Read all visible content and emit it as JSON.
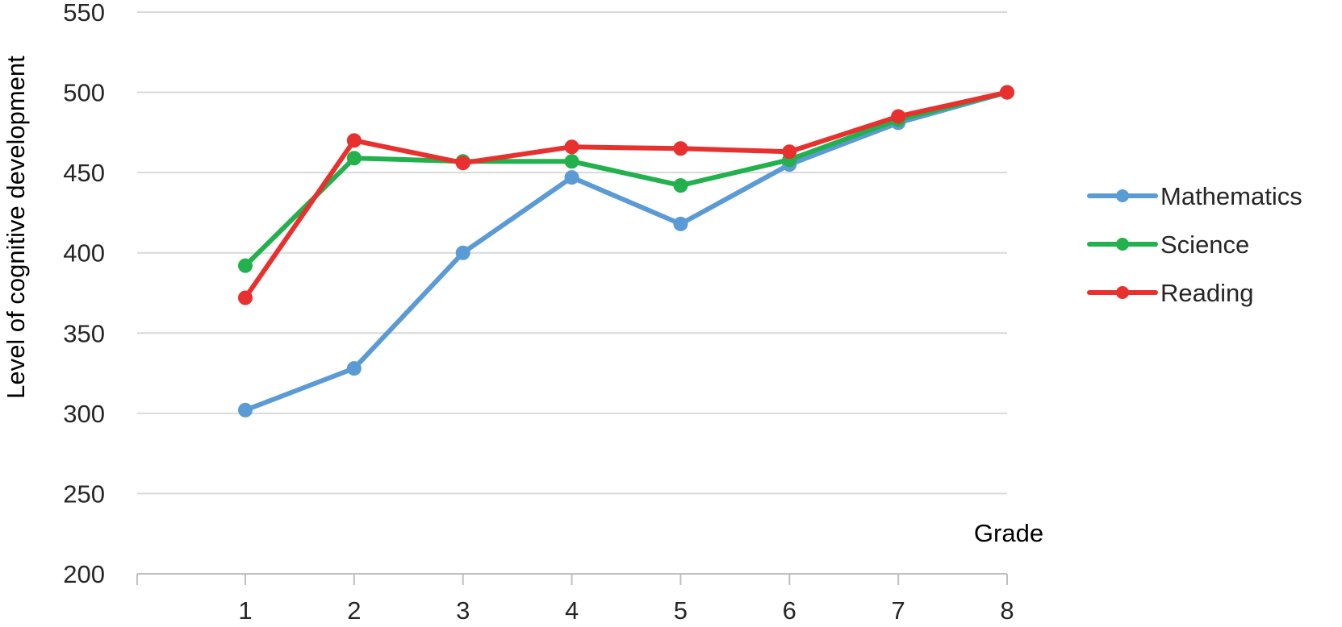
{
  "chart_data": {
    "type": "line",
    "xlabel": "Grade",
    "ylabel": "Level of cognitive development",
    "categories": [
      "1",
      "2",
      "3",
      "4",
      "5",
      "6",
      "7",
      "8"
    ],
    "ylim": [
      200,
      550
    ],
    "yticks": [
      "200",
      "250",
      "300",
      "350",
      "400",
      "450",
      "500",
      "550"
    ],
    "grid": true,
    "legend_position": "right",
    "series": [
      {
        "name": "Mathematics",
        "color": "#5b9bd5",
        "values": [
          302,
          328,
          400,
          447,
          418,
          455,
          481,
          500
        ]
      },
      {
        "name": "Science",
        "color": "#22b14c",
        "values": [
          392,
          459,
          457,
          457,
          442,
          458,
          483,
          500
        ]
      },
      {
        "name": "Reading",
        "color": "#e8302e",
        "values": [
          372,
          470,
          456,
          466,
          465,
          463,
          485,
          500
        ]
      }
    ]
  }
}
